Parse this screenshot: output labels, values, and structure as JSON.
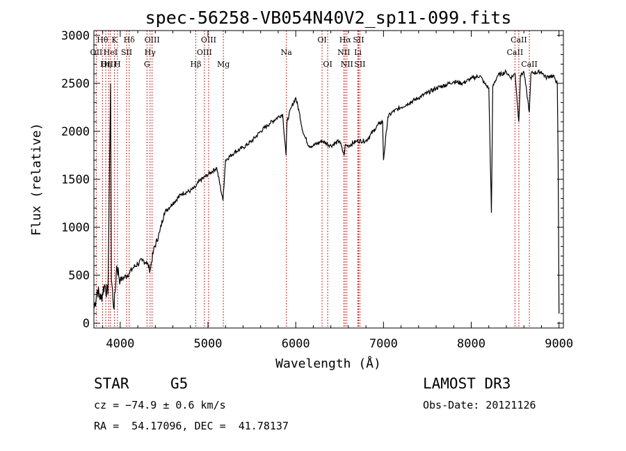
{
  "chart_data": {
    "type": "line",
    "title": "spec-56258-VB054N40V2_sp11-099.fits",
    "xlabel": "Wavelength (Å)",
    "ylabel": "Flux (relative)",
    "xlim": [
      3700,
      9050
    ],
    "ylim": [
      -50,
      3050
    ],
    "xticks": [
      4000,
      5000,
      6000,
      7000,
      8000,
      9000
    ],
    "yticks": [
      0,
      500,
      1000,
      1500,
      2000,
      2500,
      3000
    ],
    "series": [
      {
        "name": "flux",
        "x": [
          3700,
          3740,
          3780,
          3820,
          3860,
          3890,
          3900,
          3930,
          3960,
          4000,
          4050,
          4100,
          4150,
          4200,
          4250,
          4300,
          4340,
          4380,
          4450,
          4500,
          4600,
          4700,
          4800,
          4860,
          4900,
          5000,
          5100,
          5170,
          5200,
          5300,
          5400,
          5500,
          5600,
          5700,
          5800,
          5850,
          5890,
          5900,
          5950,
          6000,
          6040,
          6080,
          6100,
          6150,
          6200,
          6300,
          6400,
          6500,
          6550,
          6563,
          6600,
          6700,
          6800,
          6900,
          6950,
          6990,
          7000,
          7050,
          7100,
          7200,
          7300,
          7400,
          7500,
          7600,
          7700,
          7800,
          7900,
          8000,
          8100,
          8150,
          8200,
          8230,
          8245,
          8260,
          8300,
          8400,
          8450,
          8500,
          8542,
          8560,
          8600,
          8662,
          8680,
          8700,
          8800,
          8850,
          8900,
          8950,
          8980,
          8990,
          9000
        ],
        "y": [
          150,
          350,
          250,
          400,
          300,
          2500,
          450,
          150,
          600,
          450,
          480,
          520,
          580,
          620,
          650,
          640,
          550,
          760,
          950,
          1150,
          1250,
          1350,
          1380,
          1420,
          1480,
          1550,
          1620,
          1280,
          1700,
          1780,
          1830,
          1900,
          2000,
          2080,
          2150,
          2180,
          1750,
          2100,
          2250,
          2350,
          2200,
          2000,
          1950,
          1850,
          1850,
          1900,
          1850,
          1900,
          1750,
          1850,
          1850,
          1900,
          1900,
          2020,
          2080,
          2100,
          1700,
          2150,
          2200,
          2250,
          2300,
          2350,
          2400,
          2450,
          2480,
          2520,
          2500,
          2550,
          2580,
          2500,
          2450,
          1150,
          2460,
          2500,
          2580,
          2620,
          2560,
          2600,
          2100,
          2580,
          2620,
          2200,
          2600,
          2610,
          2620,
          2560,
          2580,
          2560,
          2500,
          1700,
          100
        ]
      }
    ],
    "lines": [
      {
        "label": "Hθ",
        "wl": 3798,
        "row": 1
      },
      {
        "label": "OII",
        "wl": 3727,
        "row": 2
      },
      {
        "label": "OIII",
        "wl": 3869,
        "row": 3
      },
      {
        "label": "K",
        "wl": 3934,
        "row": 1
      },
      {
        "label": "Hη",
        "wl": 3835,
        "row": 3
      },
      {
        "label": "HeI",
        "wl": 3889,
        "row": 2
      },
      {
        "label": "H",
        "wl": 3969,
        "row": 3
      },
      {
        "label": "SII",
        "wl": 4072,
        "row": 2
      },
      {
        "label": "Hδ",
        "wl": 4102,
        "row": 1
      },
      {
        "label": "OIII",
        "wl": 4363,
        "row": 1
      },
      {
        "label": "Hγ",
        "wl": 4340,
        "row": 2
      },
      {
        "label": "G",
        "wl": 4305,
        "row": 3
      },
      {
        "label": "Hβ",
        "wl": 4861,
        "row": 3
      },
      {
        "label": "OIII",
        "wl": 4959,
        "row": 2
      },
      {
        "label": "OIII",
        "wl": 5007,
        "row": 1
      },
      {
        "label": "Mg",
        "wl": 5175,
        "row": 3
      },
      {
        "label": "Na",
        "wl": 5893,
        "row": 2
      },
      {
        "label": "OI",
        "wl": 6300,
        "row": 1
      },
      {
        "label": "OI",
        "wl": 6364,
        "row": 3
      },
      {
        "label": "Hα",
        "wl": 6563,
        "row": 1
      },
      {
        "label": "NII",
        "wl": 6548,
        "row": 2
      },
      {
        "label": "NII",
        "wl": 6583,
        "row": 3
      },
      {
        "label": "SII",
        "wl": 6716,
        "row": 1
      },
      {
        "label": "Li",
        "wl": 6708,
        "row": 2
      },
      {
        "label": "SII",
        "wl": 6731,
        "row": 3
      },
      {
        "label": "CaII",
        "wl": 8498,
        "row": 2
      },
      {
        "label": "CaII",
        "wl": 8542,
        "row": 1
      },
      {
        "label": "CaII",
        "wl": 8662,
        "row": 3
      }
    ],
    "line_color": "#cc2222"
  },
  "info": {
    "class_label": "STAR",
    "subclass": "G5",
    "survey": "LAMOST DR3",
    "cz": "cz = −74.9 ± 0.6 km/s",
    "obs_date": "Obs-Date: 20121126",
    "coords": "RA =  54.17096, DEC =  41.78137"
  }
}
